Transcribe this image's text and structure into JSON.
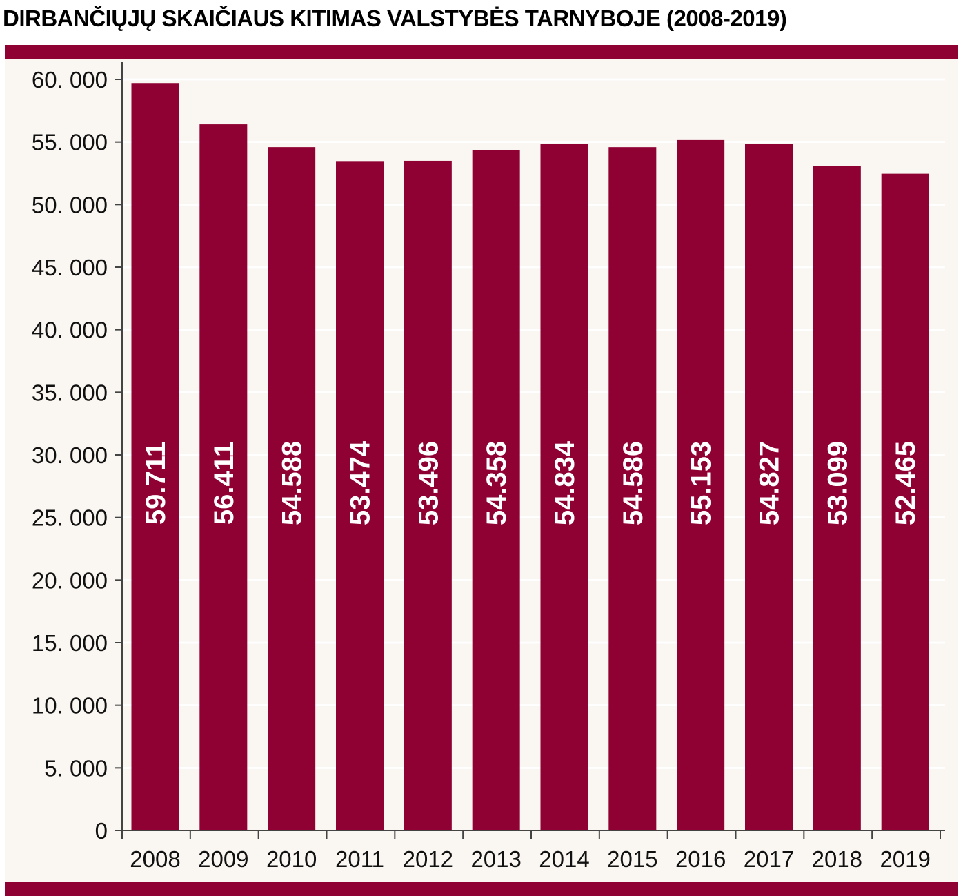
{
  "chart_data": {
    "type": "bar",
    "title": "DIRBANČIŲJŲ SKAIČIAUS KITIMAS VALSTYBĖS TARNYBOJE (2008-2019)",
    "categories": [
      "2008",
      "2009",
      "2010",
      "2011",
      "2012",
      "2013",
      "2014",
      "2015",
      "2016",
      "2017",
      "2018",
      "2019"
    ],
    "values": [
      59711,
      56411,
      54588,
      53474,
      53496,
      54358,
      54834,
      54586,
      55153,
      54827,
      53099,
      52465
    ],
    "value_labels": [
      "59.711",
      "56.411",
      "54.588",
      "53.474",
      "53.496",
      "54.358",
      "54.834",
      "54.586",
      "55.153",
      "54.827",
      "53.099",
      "52.465"
    ],
    "yticks": [
      0,
      5000,
      10000,
      15000,
      20000,
      25000,
      30000,
      35000,
      40000,
      45000,
      50000,
      55000,
      60000
    ],
    "ytick_labels": [
      "0",
      "5. 000",
      "10. 000",
      "15. 000",
      "20. 000",
      "25. 000",
      "30. 000",
      "35. 000",
      "40. 000",
      "45. 000",
      "50. 000",
      "55. 000",
      "60. 000"
    ],
    "ylim": [
      0,
      60000
    ],
    "xlabel": "",
    "ylabel": "",
    "grid": true,
    "colors": {
      "bar": "#8f0033",
      "background": "#faf6f1",
      "grid": "#ffffff",
      "axis": "#444444",
      "band": "#8f0033"
    }
  }
}
